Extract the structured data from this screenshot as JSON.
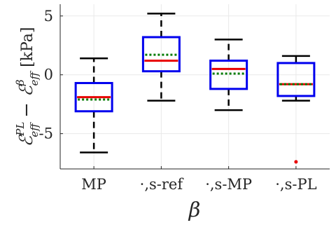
{
  "chart_data": {
    "type": "box",
    "title": "",
    "xlabel": "β",
    "ylabel": {
      "main": "ℰ",
      "sup1": "PL",
      "sub1": "eff",
      "minus": " − ",
      "main2": "ℰ",
      "sup2": "β",
      "sub2": "eff",
      "unit": " [kPa]"
    },
    "ylim": [
      -8,
      6
    ],
    "yticks": [
      -5,
      0,
      5
    ],
    "ytick_labels": [
      "-5",
      "0",
      "5"
    ],
    "grid": true,
    "categories": [
      "MP",
      "·,s-ref",
      "·,s-MP",
      "·,s-PL"
    ],
    "boxes": [
      {
        "whisker_low": -6.6,
        "q1": -3.1,
        "median": -1.9,
        "mean": -2.1,
        "q3": -0.7,
        "whisker_high": 1.4,
        "outliers": []
      },
      {
        "whisker_low": -2.2,
        "q1": 0.3,
        "median": 1.2,
        "mean": 1.7,
        "q3": 3.2,
        "whisker_high": 5.2,
        "outliers": []
      },
      {
        "whisker_low": -3.0,
        "q1": -1.2,
        "median": 0.5,
        "mean": 0.1,
        "q3": 1.2,
        "whisker_high": 3.0,
        "outliers": []
      },
      {
        "whisker_low": -2.2,
        "q1": -1.8,
        "median": -0.8,
        "mean": -0.8,
        "q3": 1.0,
        "whisker_high": 1.6,
        "outliers": [
          -7.4
        ]
      }
    ],
    "colors": {
      "box": "#0000ee",
      "median": "#e80000",
      "mean": "#007a00",
      "whisker": "#000000",
      "outlier": "#e80000",
      "grid": "#e9e9e9",
      "axis": "#262626"
    }
  }
}
